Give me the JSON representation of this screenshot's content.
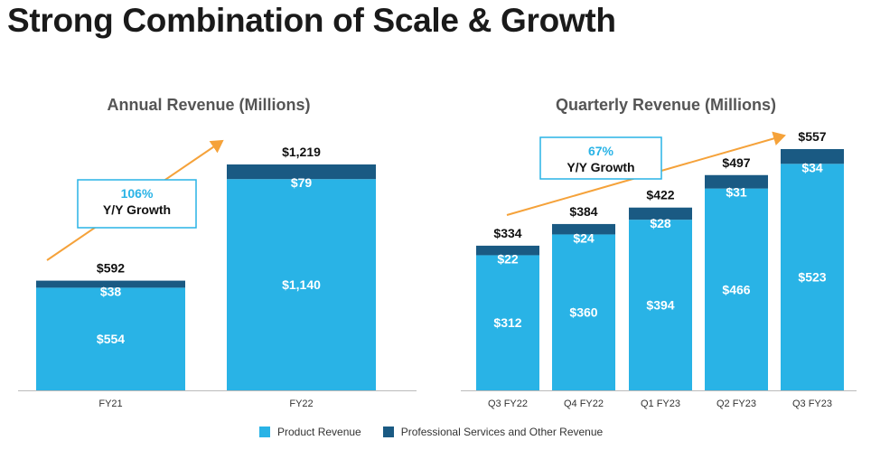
{
  "page": {
    "title": "Strong Combination of Scale & Growth"
  },
  "colors": {
    "product": "#29b3e6",
    "services": "#1a5a83",
    "arrow": "#f5a23a",
    "growth_pct": "#29b3e6",
    "axis": "#bbbbbb"
  },
  "legend": [
    {
      "label": "Product Revenue",
      "color": "#29b3e6"
    },
    {
      "label": "Professional Services and Other Revenue",
      "color": "#1a5a83"
    }
  ],
  "chart_data": [
    {
      "type": "bar",
      "stacked": true,
      "title": "Annual Revenue (Millions)",
      "categories": [
        "FY21",
        "FY22"
      ],
      "series": [
        {
          "name": "Product Revenue",
          "values": [
            554,
            1140
          ],
          "labels": [
            "$554",
            "$1,140"
          ]
        },
        {
          "name": "Professional Services and Other Revenue",
          "values": [
            38,
            79
          ],
          "labels": [
            "$38",
            "$79"
          ]
        }
      ],
      "totals": [
        592,
        1219
      ],
      "total_labels": [
        "$592",
        "$1,219"
      ],
      "ylim": [
        0,
        1219
      ],
      "growth": {
        "percent": "106%",
        "label": "Y/Y Growth"
      }
    },
    {
      "type": "bar",
      "stacked": true,
      "title": "Quarterly Revenue (Millions)",
      "categories": [
        "Q3 FY22",
        "Q4 FY22",
        "Q1 FY23",
        "Q2 FY23",
        "Q3 FY23"
      ],
      "series": [
        {
          "name": "Product Revenue",
          "values": [
            312,
            360,
            394,
            466,
            523
          ],
          "labels": [
            "$312",
            "$360",
            "$394",
            "$466",
            "$523"
          ]
        },
        {
          "name": "Professional Services and Other Revenue",
          "values": [
            22,
            24,
            28,
            31,
            34
          ],
          "labels": [
            "$22",
            "$24",
            "$28",
            "$31",
            "$34"
          ]
        }
      ],
      "totals": [
        334,
        384,
        422,
        497,
        557
      ],
      "total_labels": [
        "$334",
        "$384",
        "$422",
        "$497",
        "$557"
      ],
      "ylim": [
        0,
        557
      ],
      "growth": {
        "percent": "67%",
        "label": "Y/Y Growth"
      }
    }
  ]
}
